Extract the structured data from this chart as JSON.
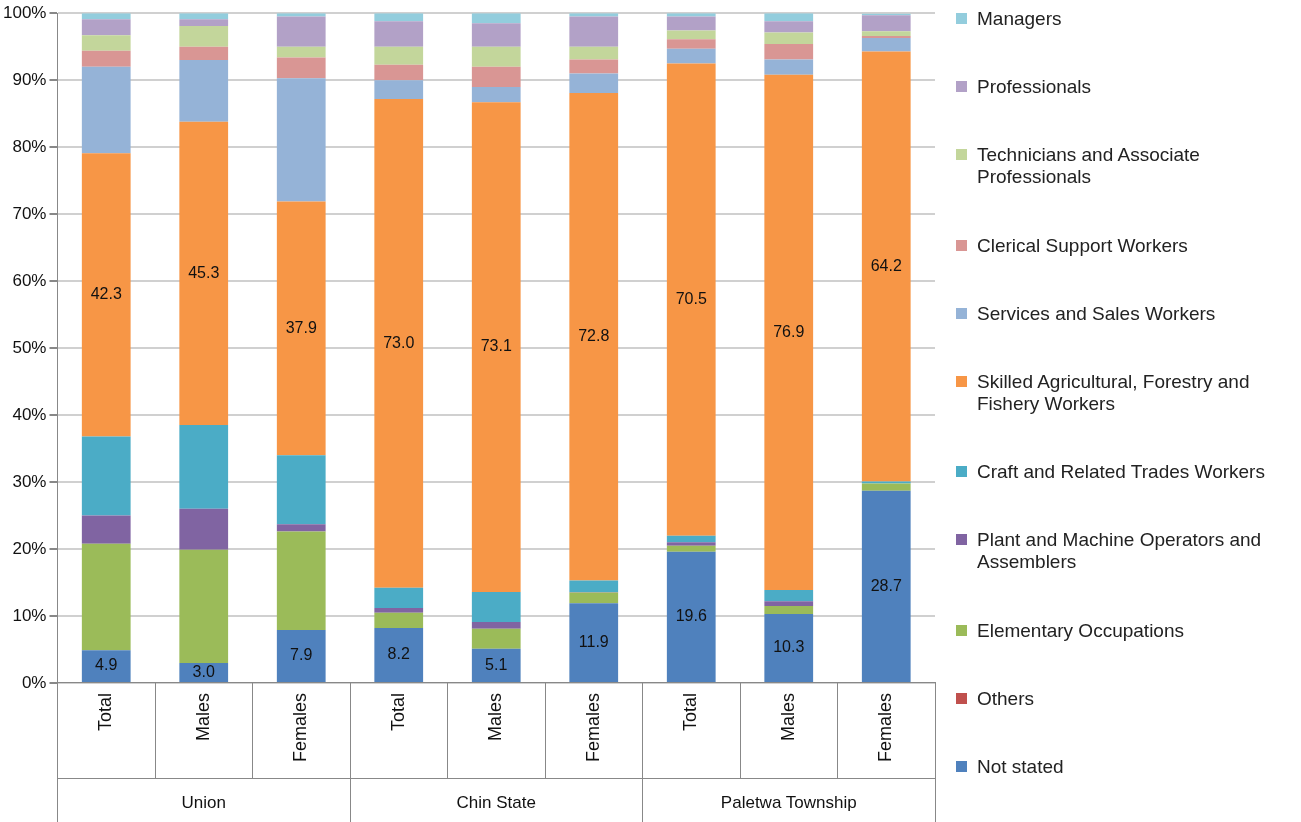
{
  "chart_data": {
    "type": "bar",
    "stacked": true,
    "legend": "right",
    "grid": "y",
    "categories": [
      "Total",
      "Males",
      "Females",
      "Total",
      "Males",
      "Females",
      "Total",
      "Males",
      "Females"
    ],
    "annotations": [
      "Union",
      "Chin State",
      "Paletwa Township"
    ],
    "ylim": [
      0,
      100
    ],
    "yticks": [
      {
        "value": 0,
        "label": "0%"
      },
      {
        "value": 10,
        "label": "10%"
      },
      {
        "value": 20,
        "label": "20%"
      },
      {
        "value": 30,
        "label": "30%"
      },
      {
        "value": 40,
        "label": "40%"
      },
      {
        "value": 50,
        "label": "50%"
      },
      {
        "value": 60,
        "label": "60%"
      },
      {
        "value": 70,
        "label": "70%"
      },
      {
        "value": 80,
        "label": "80%"
      },
      {
        "value": 90,
        "label": "90%"
      },
      {
        "value": 100,
        "label": "100%"
      }
    ],
    "series": [
      {
        "name": "Not stated",
        "color": "#4f81bd",
        "values": [
          4.9,
          3.0,
          7.9,
          8.2,
          5.1,
          11.9,
          19.6,
          10.3,
          28.7
        ],
        "value_labels": [
          "4.9",
          "3.0",
          "7.9",
          "8.2",
          "5.1",
          "11.9",
          "19.6",
          "10.3",
          "28.7"
        ]
      },
      {
        "name": "Others",
        "color": "#c0504d",
        "values": [
          0,
          0,
          0,
          0,
          0,
          0,
          0,
          0,
          0
        ]
      },
      {
        "name": "Elementary Occupations",
        "color": "#9bbb59",
        "values": [
          15.9,
          16.9,
          14.7,
          2.3,
          3.0,
          1.6,
          0.9,
          1.2,
          1.1
        ]
      },
      {
        "name": "Plant and Machine Operators and Assemblers",
        "color": "#8064a2",
        "values": [
          4.2,
          6.1,
          1.1,
          0.7,
          1.0,
          0.1,
          0.5,
          0.7,
          null
        ]
      },
      {
        "name": "Craft and Related Trades Workers",
        "color": "#4bacc6",
        "values": [
          11.8,
          12.5,
          10.3,
          3.0,
          4.5,
          1.7,
          1.0,
          1.7,
          0.3
        ]
      },
      {
        "name": "Skilled Agricultural, Forestry and Fishery Workers",
        "color": "#f79646",
        "values": [
          42.3,
          45.3,
          37.9,
          73.0,
          73.1,
          72.8,
          70.5,
          76.9,
          64.2
        ],
        "value_labels": [
          "42.3",
          "45.3",
          "37.9",
          "73.0",
          "73.1",
          "72.8",
          "70.5",
          "76.9",
          "64.2"
        ]
      },
      {
        "name": "Services and Sales Workers",
        "color": "#95b3d7",
        "values": [
          12.9,
          9.2,
          18.4,
          2.8,
          2.3,
          2.9,
          2.2,
          2.3,
          2.0
        ]
      },
      {
        "name": "Clerical Support Workers",
        "color": "#d99694",
        "values": [
          2.4,
          2.0,
          3.1,
          2.3,
          3.0,
          2.1,
          1.4,
          2.3,
          0.3
        ]
      },
      {
        "name": "Technicians and Associate Professionals",
        "color": "#c3d69b",
        "values": [
          2.3,
          3.1,
          1.6,
          2.7,
          3.0,
          1.9,
          1.3,
          1.7,
          0.7
        ]
      },
      {
        "name": "Professionals",
        "color": "#b2a1c7",
        "values": [
          2.4,
          1.0,
          4.5,
          3.8,
          3.5,
          4.5,
          2.1,
          1.7,
          2.4
        ]
      },
      {
        "name": "Managers",
        "color": "#93cddd",
        "values": [
          0.9,
          0.9,
          0.5,
          1.2,
          1.5,
          0.5,
          0.5,
          1.2,
          0.2
        ]
      }
    ]
  }
}
